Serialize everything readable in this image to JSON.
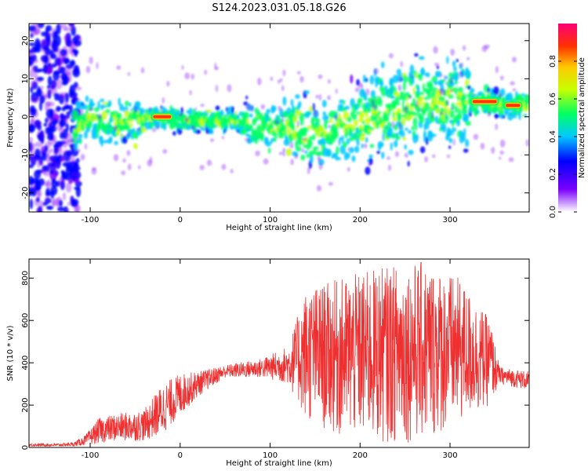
{
  "chart_data": [
    {
      "type": "heatmap",
      "title": "S124.2023.031.05.18.G26",
      "xlabel": "Height of straight line (km)",
      "ylabel": "Frequency (Hz)",
      "xlim": [
        -168,
        388
      ],
      "ylim": [
        -25,
        24.5
      ],
      "xticks": [
        -100,
        0,
        100,
        200,
        300
      ],
      "yticks": [
        -20,
        -10,
        0,
        10,
        20
      ],
      "grid": false,
      "colorbar": {
        "label": "Normalized spectral amplitude",
        "range": [
          0.0,
          1.0
        ],
        "ticks": [
          0.0,
          0.2,
          0.4,
          0.6,
          0.8
        ],
        "colors": [
          "#ffffff",
          "#7b00ff",
          "#0000ff",
          "#00c8ff",
          "#00ff64",
          "#c8ff00",
          "#ffc800",
          "#ff3200",
          "#ff0078"
        ]
      },
      "ridge_trace": [
        {
          "x": -115,
          "y": -3
        },
        {
          "x": -100,
          "y": 0
        },
        {
          "x": -75,
          "y": -2
        },
        {
          "x": -50,
          "y": -1
        },
        {
          "x": -30,
          "y": 0
        },
        {
          "x": 0,
          "y": -1
        },
        {
          "x": 30,
          "y": -1
        },
        {
          "x": 60,
          "y": -1
        },
        {
          "x": 80,
          "y": -2
        },
        {
          "x": 100,
          "y": -3
        },
        {
          "x": 130,
          "y": -3
        },
        {
          "x": 150,
          "y": -5
        },
        {
          "x": 160,
          "y": -4
        },
        {
          "x": 180,
          "y": -2
        },
        {
          "x": 200,
          "y": -1
        },
        {
          "x": 230,
          "y": 1
        },
        {
          "x": 260,
          "y": 3
        },
        {
          "x": 290,
          "y": 4
        },
        {
          "x": 320,
          "y": 4
        },
        {
          "x": 340,
          "y": 4
        },
        {
          "x": 360,
          "y": 3
        },
        {
          "x": 385,
          "y": 3
        }
      ],
      "peak_segments": [
        {
          "x0": -30,
          "x1": -10,
          "y": 0
        },
        {
          "x0": 325,
          "x1": 352,
          "y": 4
        },
        {
          "x0": 362,
          "x1": 378,
          "y": 3
        }
      ]
    },
    {
      "type": "line",
      "xlabel": "Height of straight line (km)",
      "ylabel": "SNR (10 * v/v)",
      "xlim": [
        -168,
        388
      ],
      "ylim": [
        0,
        890
      ],
      "xticks": [
        -100,
        0,
        100,
        200,
        300
      ],
      "yticks": [
        0,
        200,
        400,
        600,
        800
      ],
      "color": "#f03030",
      "envelope": [
        {
          "x": -168,
          "lo": 5,
          "hi": 20
        },
        {
          "x": -140,
          "lo": 5,
          "hi": 18
        },
        {
          "x": -118,
          "lo": 5,
          "hi": 25
        },
        {
          "x": -105,
          "lo": 10,
          "hi": 60
        },
        {
          "x": -90,
          "lo": 20,
          "hi": 140
        },
        {
          "x": -70,
          "lo": 30,
          "hi": 160
        },
        {
          "x": -40,
          "lo": 30,
          "hi": 180
        },
        {
          "x": -20,
          "lo": 60,
          "hi": 300
        },
        {
          "x": 0,
          "lo": 150,
          "hi": 350
        },
        {
          "x": 20,
          "lo": 240,
          "hi": 360
        },
        {
          "x": 50,
          "lo": 330,
          "hi": 390
        },
        {
          "x": 90,
          "lo": 330,
          "hi": 420
        },
        {
          "x": 120,
          "lo": 300,
          "hi": 480
        },
        {
          "x": 140,
          "lo": 120,
          "hi": 750
        },
        {
          "x": 180,
          "lo": 40,
          "hi": 800
        },
        {
          "x": 220,
          "lo": 20,
          "hi": 850
        },
        {
          "x": 270,
          "lo": 20,
          "hi": 880
        },
        {
          "x": 310,
          "lo": 100,
          "hi": 800
        },
        {
          "x": 345,
          "lo": 200,
          "hi": 600
        },
        {
          "x": 355,
          "lo": 300,
          "hi": 380
        },
        {
          "x": 388,
          "lo": 270,
          "hi": 360
        }
      ]
    }
  ]
}
